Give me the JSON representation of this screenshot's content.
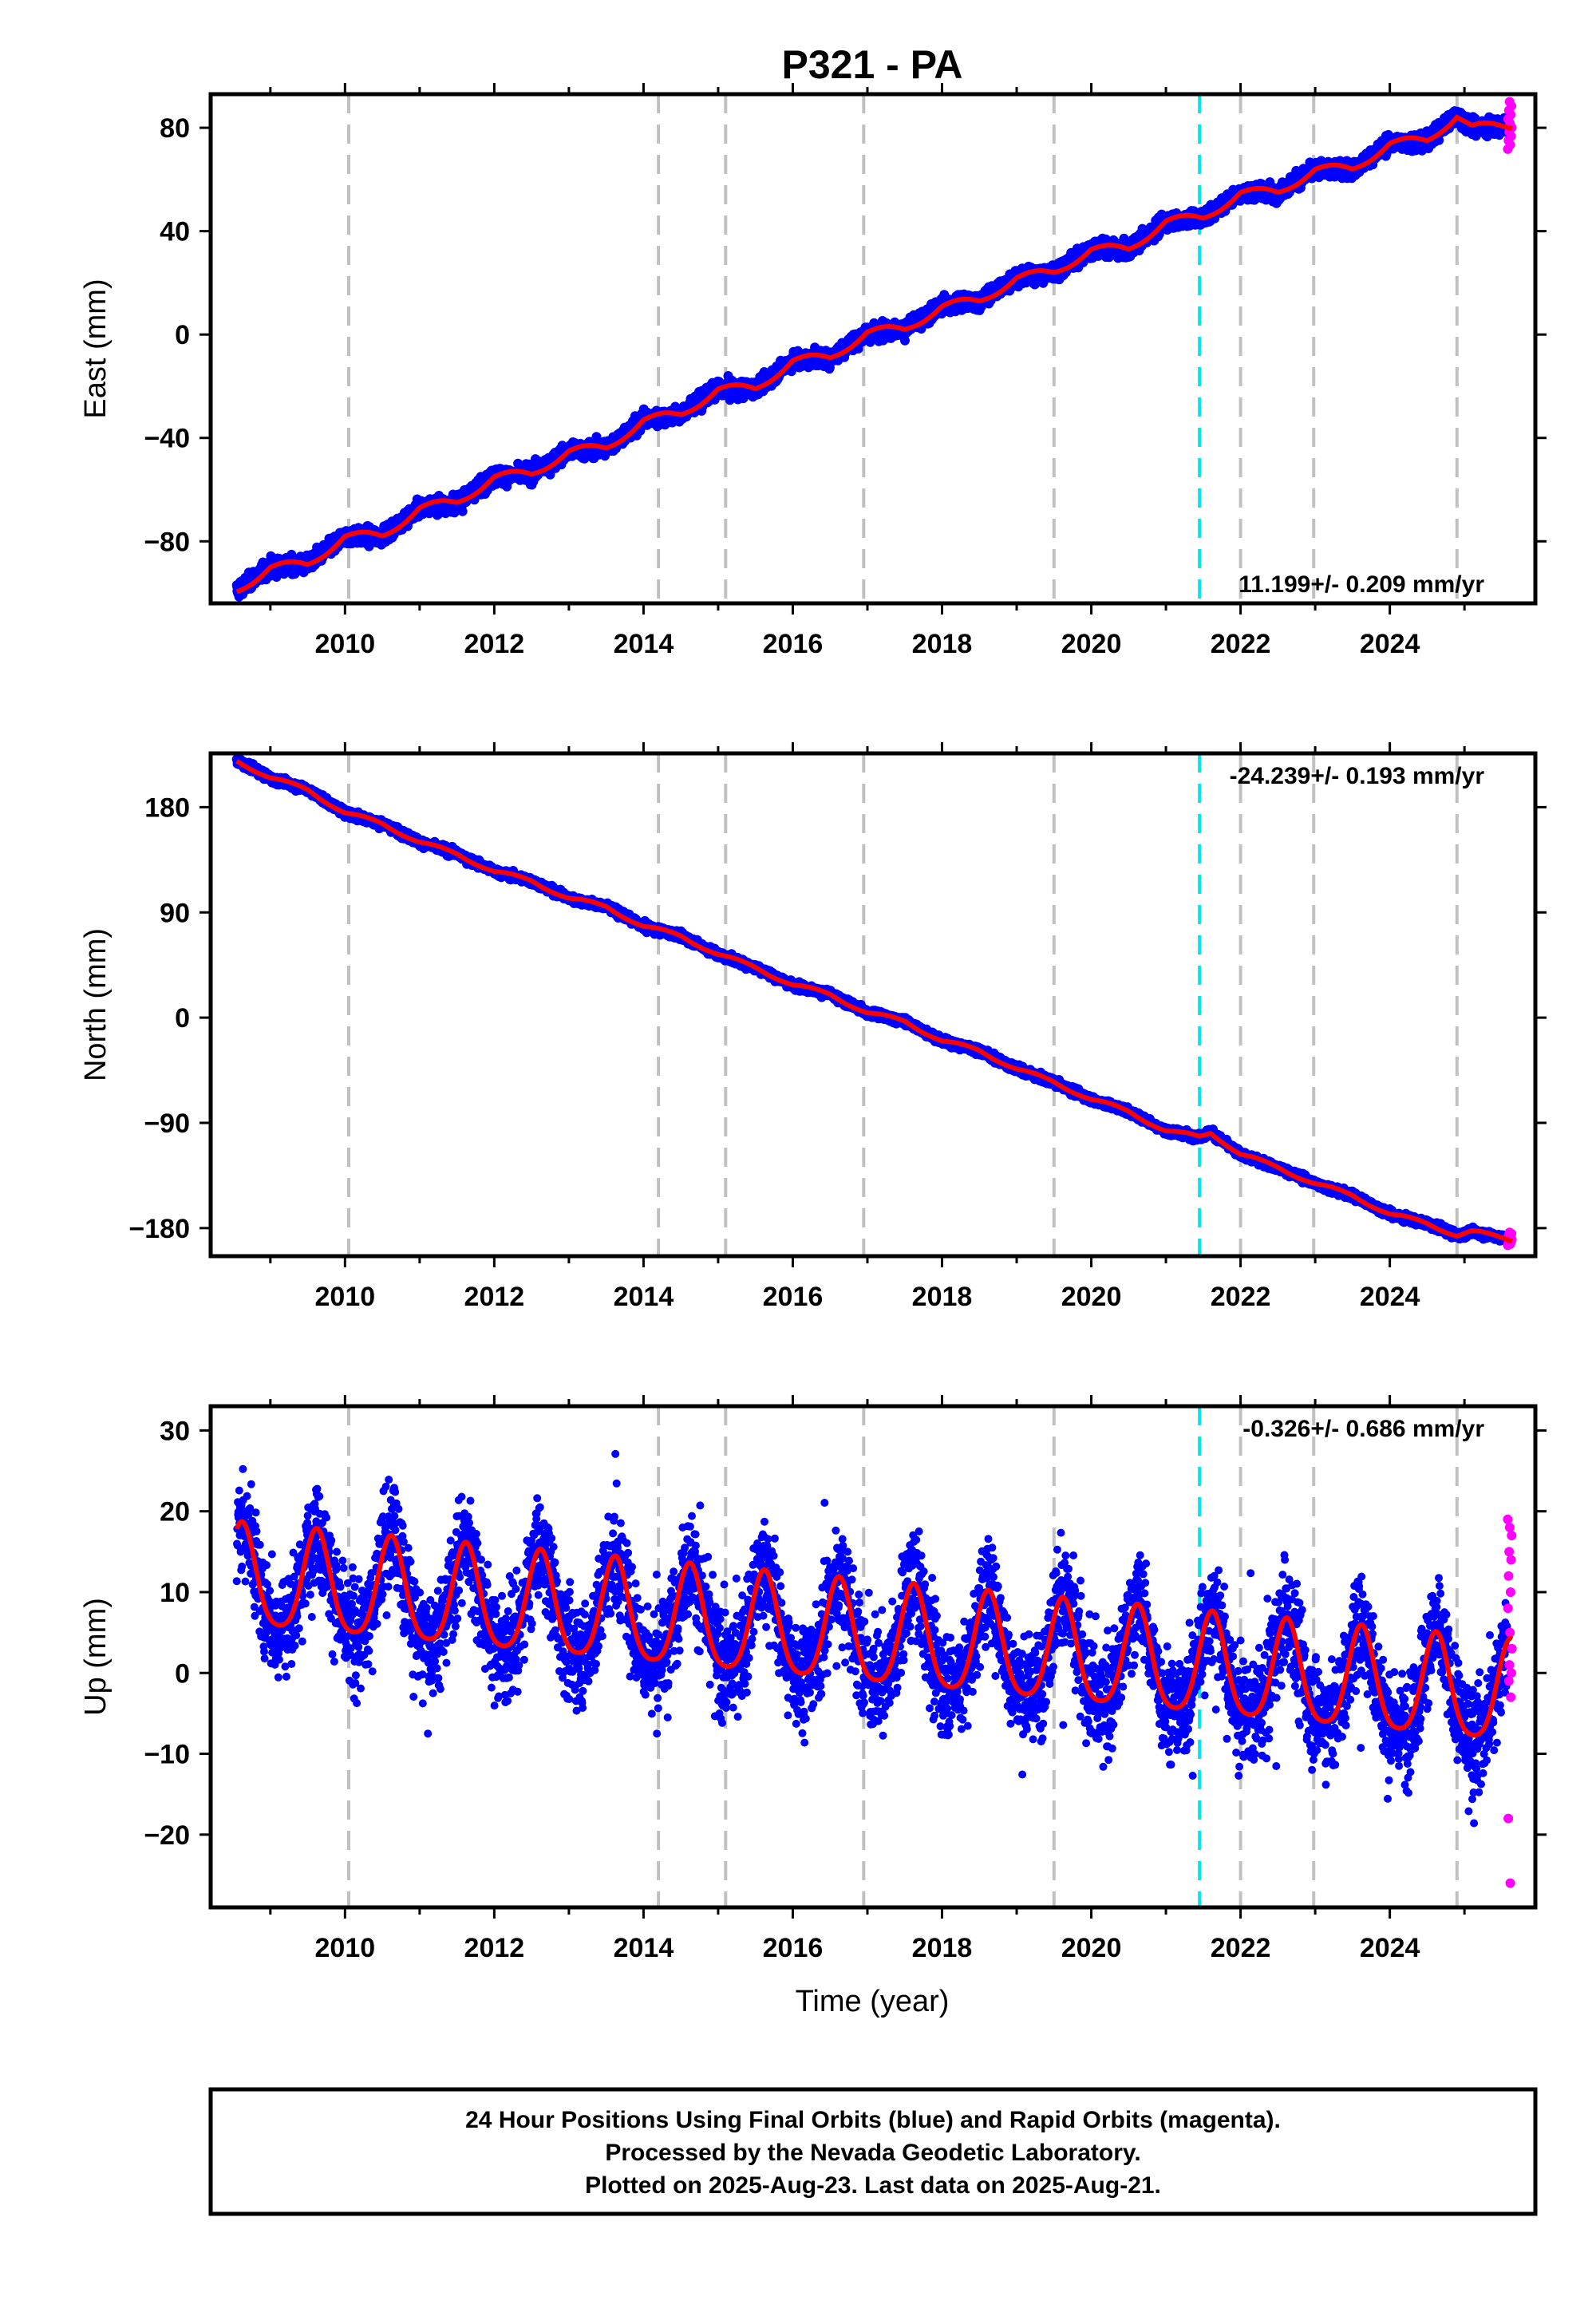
{
  "chart_data": {
    "type": "scatter",
    "title": "P321 - PA",
    "xlabel": "Time (year)",
    "xlim": [
      2008.2,
      2025.95
    ],
    "x_ticks": [
      2010,
      2012,
      2014,
      2016,
      2018,
      2020,
      2022,
      2024
    ],
    "vertical_lines": {
      "gray_dashed": [
        2010.05,
        2014.2,
        2015.1,
        2016.95,
        2019.5,
        2022.0,
        2022.98,
        2024.9
      ],
      "cyan_dashed": 2021.45
    },
    "legend": "",
    "grid": false,
    "data_start": 2008.55,
    "data_end": 2025.64,
    "panels": [
      {
        "name": "east",
        "ylabel": "East (mm)",
        "ylim": [
          -104,
          93
        ],
        "y_ticks": [
          -80,
          -40,
          0,
          40,
          80
        ],
        "rate_label": "11.199+/- 0.209 mm/yr",
        "series": [
          {
            "name": "Final Orbits (blue)",
            "color": "#0000ff",
            "kind": "points",
            "scatter_mm": 2.2
          },
          {
            "name": "Rapid Orbits (magenta)",
            "color": "#ff00ff",
            "kind": "points",
            "x_range": [
              2025.58,
              2025.64
            ],
            "scatter_mm": 5
          },
          {
            "name": "model",
            "color": "#ff0000",
            "kind": "line",
            "x": [
              2008.55,
              2009.0,
              2009.5,
              2010.0,
              2010.5,
              2011.0,
              2011.5,
              2012.0,
              2012.5,
              2013.0,
              2013.5,
              2014.0,
              2014.5,
              2015.0,
              2015.5,
              2016.0,
              2016.5,
              2017.0,
              2017.5,
              2018.0,
              2018.5,
              2019.0,
              2019.5,
              2020.0,
              2020.5,
              2021.0,
              2021.5,
              2022.0,
              2022.5,
              2023.0,
              2023.5,
              2024.0,
              2024.5,
              2024.9,
              2025.1,
              2025.64
            ],
            "y": [
              -99,
              -90,
              -89,
              -78,
              -78,
              -67,
              -65,
              -55,
              -54,
              -45,
              -44,
              -33,
              -31,
              -21,
              -21,
              -10,
              -9,
              1,
              2,
              11,
              13,
              22,
              24,
              33,
              33,
              44,
              45,
              55,
              55,
              64,
              64,
              74,
              75,
              85,
              80,
              81
            ]
          }
        ]
      },
      {
        "name": "north",
        "ylabel": "North (mm)",
        "ylim": [
          -204,
          226
        ],
        "y_ticks": [
          -180,
          -90,
          0,
          90,
          180
        ],
        "rate_label": "-24.239+/- 0.193 mm/yr",
        "series": [
          {
            "name": "Final Orbits (blue)",
            "color": "#0000ff",
            "kind": "points",
            "scatter_mm": 2.2
          },
          {
            "name": "Rapid Orbits (magenta)",
            "color": "#ff00ff",
            "kind": "points",
            "x_range": [
              2025.58,
              2025.64
            ],
            "scatter_mm": 3
          },
          {
            "name": "model",
            "color": "#ff0000",
            "kind": "line",
            "x": [
              2008.55,
              2009.0,
              2009.5,
              2010.0,
              2010.5,
              2011.0,
              2011.5,
              2012.0,
              2012.5,
              2013.0,
              2013.5,
              2014.0,
              2014.5,
              2015.0,
              2015.5,
              2016.0,
              2016.5,
              2017.0,
              2017.5,
              2018.0,
              2018.5,
              2019.0,
              2019.5,
              2020.0,
              2020.5,
              2021.0,
              2021.45,
              2021.6,
              2022.0,
              2022.5,
              2023.0,
              2023.5,
              2024.0,
              2024.5,
              2024.9,
              2025.1,
              2025.64
            ],
            "y": [
              220,
              205,
              195,
              175,
              166,
              150,
              140,
              125,
              117,
              102,
              95,
              78,
              70,
              54,
              43,
              28,
              20,
              4,
              -3,
              -20,
              -28,
              -44,
              -55,
              -70,
              -80,
              -97,
              -102,
              -98,
              -117,
              -128,
              -142,
              -152,
              -168,
              -176,
              -186,
              -183,
              -190
            ]
          }
        ]
      },
      {
        "name": "up",
        "ylabel": "Up (mm)",
        "ylim": [
          -29,
          33
        ],
        "y_ticks": [
          -20,
          -10,
          0,
          10,
          20,
          30
        ],
        "rate_label": "-0.326+/- 0.686 mm/yr",
        "series": [
          {
            "name": "Final Orbits (blue)",
            "color": "#0000ff",
            "kind": "points",
            "scatter_mm": 4.5
          },
          {
            "name": "Rapid Orbits (magenta)",
            "color": "#ff00ff",
            "kind": "points",
            "x_range": [
              2025.58,
              2025.64
            ],
            "y": [
              19,
              18,
              17,
              15,
              14,
              12,
              10,
              8,
              5,
              3,
              1,
              0,
              -1,
              -3,
              -18,
              -26
            ]
          },
          {
            "name": "model",
            "color": "#ff0000",
            "kind": "line",
            "model": {
              "offset_at_start": 11.5,
              "rate_mm_per_yr": -0.85,
              "start_year": 2008.55,
              "annual_amplitude": 6.2,
              "semiannual_amplitude": 1.1,
              "peak_year_fraction": 0.62,
              "end_year": 2025.64
            }
          }
        ]
      }
    ],
    "footer_lines": [
      "24 Hour Positions Using Final Orbits (blue) and Rapid Orbits (magenta).",
      "Processed by the Nevada Geodetic Laboratory.",
      "Plotted on 2025-Aug-23. Last data on 2025-Aug-21."
    ]
  }
}
